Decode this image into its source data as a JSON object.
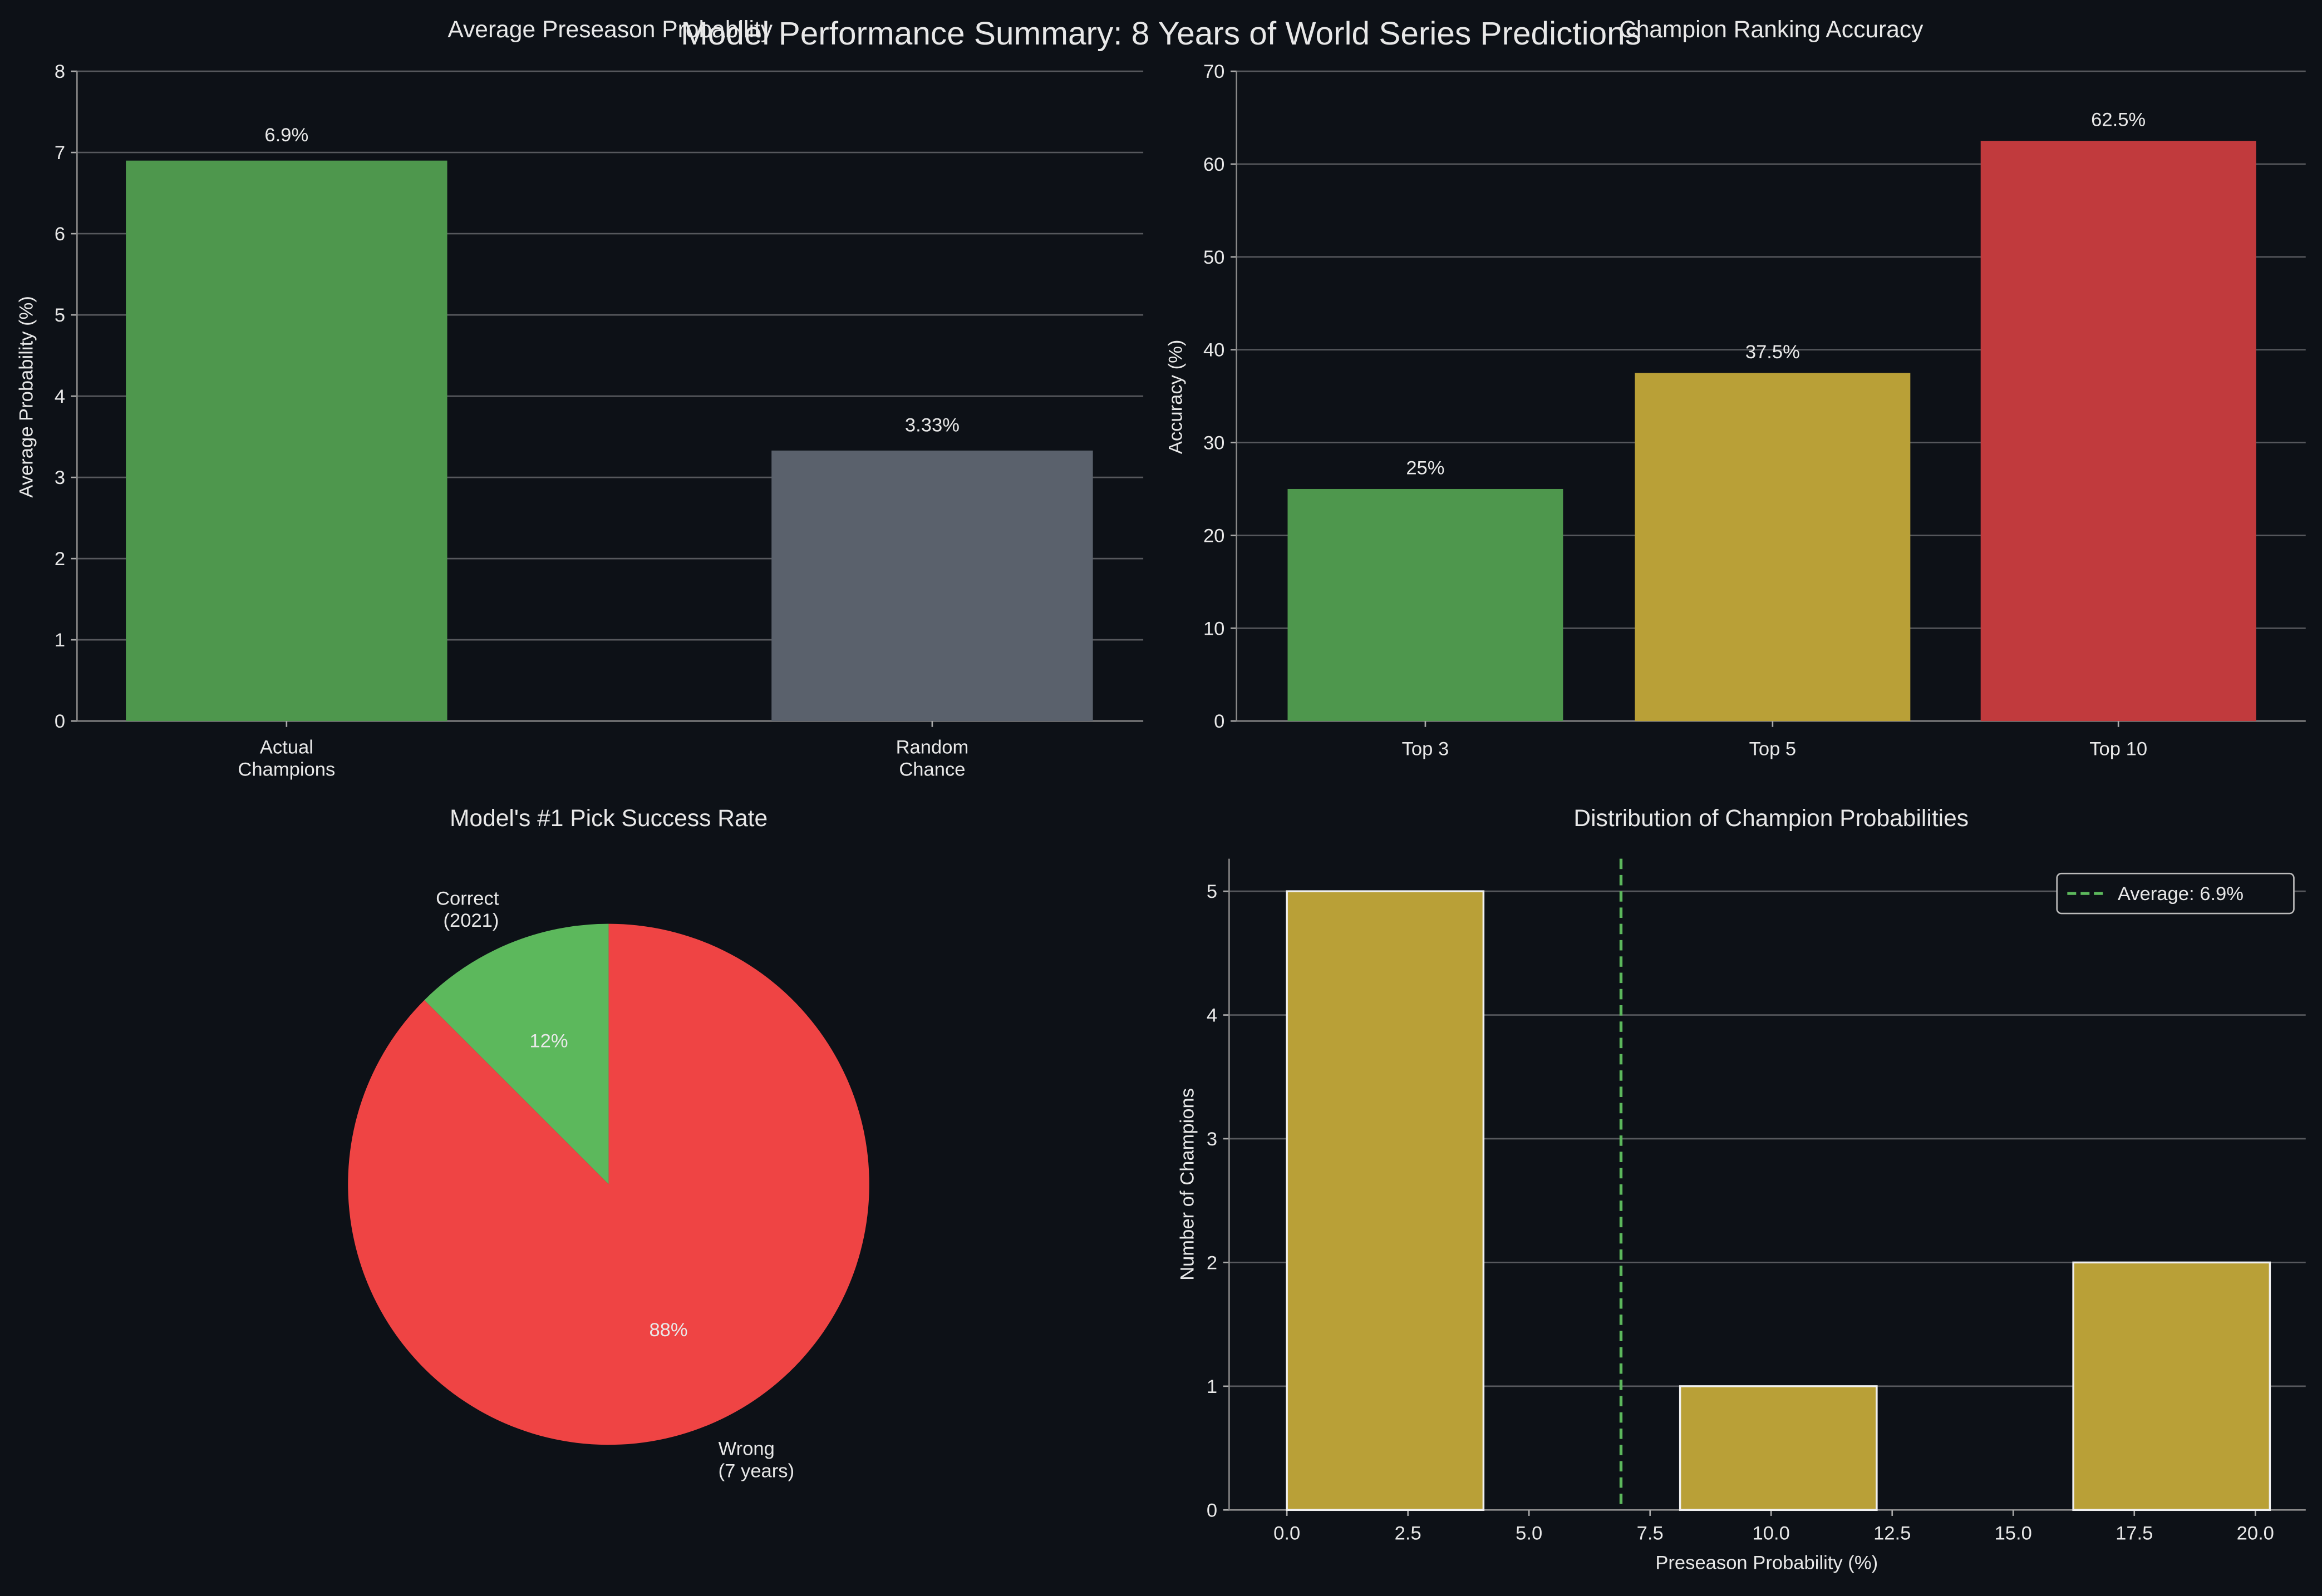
{
  "suptitle": "Model Performance Summary: 8 Years of World Series Predictions",
  "colors": {
    "background": "#0d1117",
    "green": "#4e974d",
    "gray": "#5a616c",
    "yellow": "#b9a037",
    "red": "#c13a3d",
    "pie_green": "#5cb85c",
    "pie_red": "#ef4444",
    "avg_line": "#5cb85c"
  },
  "chart_data": [
    {
      "type": "bar",
      "title": "Average Preseason Probability",
      "ylabel": "Average Probability (%)",
      "categories": [
        "Actual\nChampions",
        "Random\nChance"
      ],
      "values": [
        6.9,
        3.33
      ],
      "data_labels": [
        "6.9%",
        "3.33%"
      ],
      "ylim": [
        0,
        8
      ],
      "yticks": [
        0,
        1,
        2,
        3,
        4,
        5,
        6,
        7,
        8
      ],
      "grid": true
    },
    {
      "type": "bar",
      "title": "Champion Ranking Accuracy",
      "ylabel": "Accuracy (%)",
      "categories": [
        "Top 3",
        "Top 5",
        "Top 10"
      ],
      "values": [
        25,
        37.5,
        62.5
      ],
      "data_labels": [
        "25%",
        "37.5%",
        "62.5%"
      ],
      "ylim": [
        0,
        70
      ],
      "yticks": [
        0,
        10,
        20,
        30,
        40,
        50,
        60,
        70
      ],
      "grid": true
    },
    {
      "type": "pie",
      "title": "Model's #1 Pick Success Rate",
      "labels": [
        "Correct\n(2021)",
        "Wrong\n(7 years)"
      ],
      "values": [
        1,
        7
      ],
      "pct_labels": [
        "12%",
        "88%"
      ]
    },
    {
      "type": "bar",
      "subtype": "histogram",
      "title": "Distribution of Champion Probabilities",
      "xlabel": "Preseason Probability (%)",
      "ylabel": "Number of Champions",
      "bin_edges": [
        0,
        4.06,
        8.12,
        12.18,
        16.24,
        20.3
      ],
      "counts": [
        5,
        0,
        1,
        0,
        2
      ],
      "xlim": [
        -1.0,
        21.3
      ],
      "ylim": [
        0,
        5.25
      ],
      "xticks": [
        "0.0",
        "2.5",
        "5.0",
        "7.5",
        "10.0",
        "12.5",
        "15.0",
        "17.5",
        "20.0"
      ],
      "yticks": [
        0,
        1,
        2,
        3,
        4,
        5
      ],
      "average_line": 6.9,
      "legend": {
        "label": "Average: 6.9%",
        "placement": "top-right"
      },
      "grid": true
    }
  ]
}
